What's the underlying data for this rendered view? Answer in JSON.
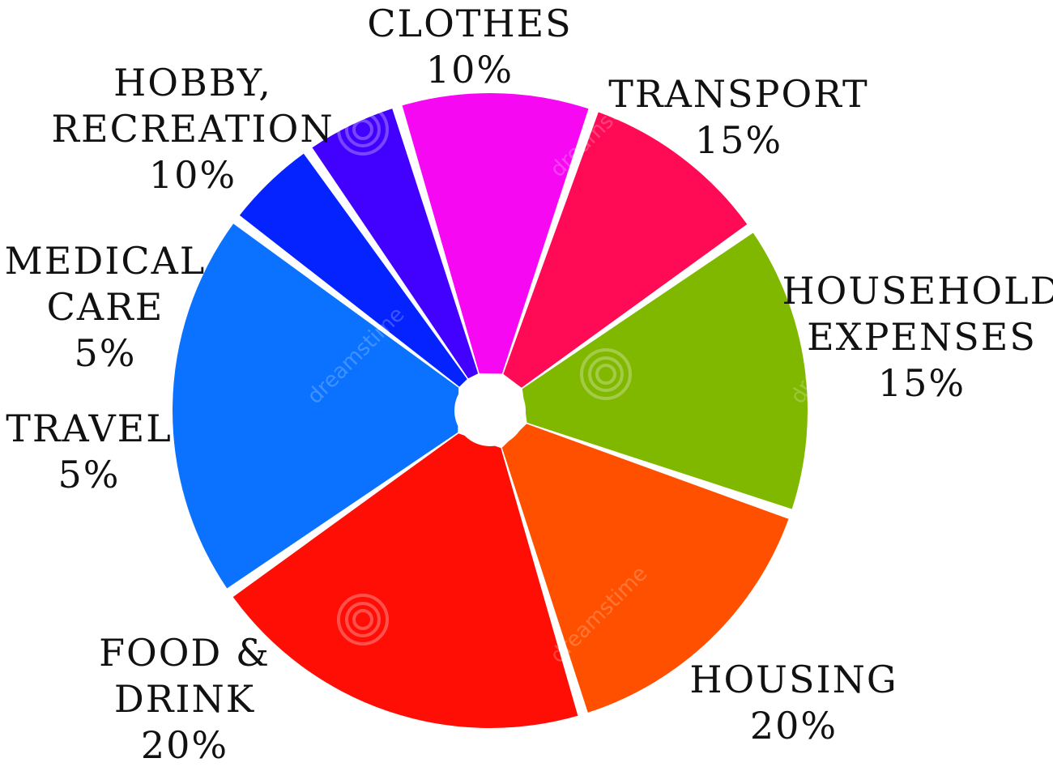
{
  "chart_data": {
    "type": "pie",
    "title": "",
    "slices": [
      {
        "label": "CLOTHES",
        "value": 10,
        "color": "#ff0a54"
      },
      {
        "label": "TRANSPORT",
        "value": 15,
        "color": "#80b800"
      },
      {
        "label": "HOUSEHOLD EXPENSES",
        "value": 15,
        "color": "#ff5000"
      },
      {
        "label": "HOUSING",
        "value": 20,
        "color": "#ff0e06"
      },
      {
        "label": "FOOD & DRINK",
        "value": 20,
        "color": "#0a72ff"
      },
      {
        "label": "TRAVEL",
        "value": 5,
        "color": "#0523ff"
      },
      {
        "label": "MEDICAL CARE",
        "value": 5,
        "color": "#4200ff"
      },
      {
        "label": "HOBBY, RECREATION",
        "value": 10,
        "color": "#f708f2"
      }
    ],
    "labels": [
      {
        "lines": [
          "CLOTHES",
          "10%"
        ]
      },
      {
        "lines": [
          "TRANSPORT",
          "15%"
        ]
      },
      {
        "lines": [
          "HOUSEHOLD",
          "EXPENSES",
          "15%"
        ]
      },
      {
        "lines": [
          "HOUSING",
          "20%"
        ]
      },
      {
        "lines": [
          "FOOD &",
          "DRINK",
          "20%"
        ]
      },
      {
        "lines": [
          "TRAVEL",
          "5%"
        ]
      },
      {
        "lines": [
          "MEDICAL",
          "CARE",
          "5%"
        ]
      },
      {
        "lines": [
          "HOBBY,",
          "RECREATION",
          "10%"
        ]
      }
    ],
    "watermark": "dreamstime"
  }
}
